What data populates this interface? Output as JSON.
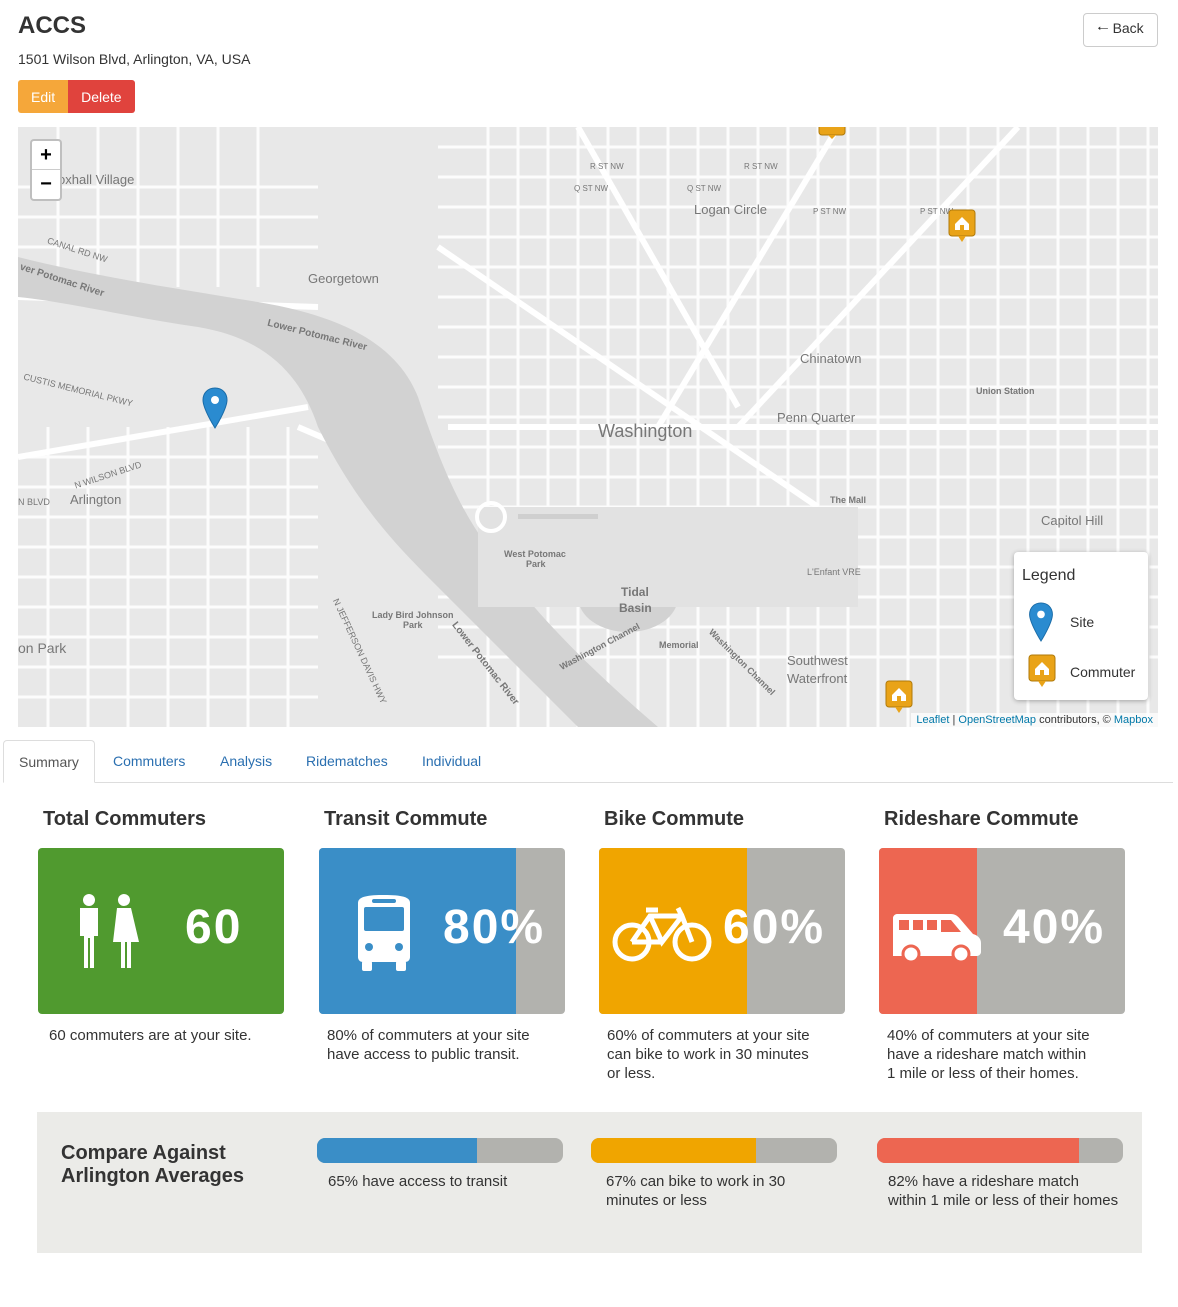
{
  "site": {
    "name": "ACCS",
    "address": "1501 Wilson Blvd, Arlington, VA, USA"
  },
  "buttons": {
    "edit": "Edit",
    "delete": "Delete",
    "back": "Back"
  },
  "map": {
    "zoom_in": "+",
    "zoom_out": "−",
    "labels": {
      "foxhall": "oxhall Village",
      "canal": "CANAL RD NW",
      "potomac_upper": "ver Potomac River",
      "georgetown": "Georgetown",
      "lower_potomac_1": "Lower Potomac River",
      "custis": "CUSTIS MEMORIAL PKWY",
      "wilson": "N WILSON BLVD",
      "arlington": "Arlington",
      "blvd": "N BLVD",
      "chinatown": "Chinatown",
      "union_station": "Union Station",
      "penn_quarter": "Penn Quarter",
      "washington": "Washington",
      "the_mall": "The Mall",
      "capitol_hill": "Capitol Hill",
      "west_potomac": "West Potomac",
      "park": "Park",
      "tidal": "Tidal",
      "basin": "Basin",
      "lenfant": "L'Enfant VRE",
      "lady_bird": "Lady Bird Johnson",
      "lady_bird_park": "Park",
      "lower_potomac_2": "Lower Potomac River",
      "memorial": "Memorial",
      "washington_channel_1": "Washington Channel",
      "washington_channel_2": "Washington Channel",
      "southwest": "Southwest",
      "waterfront": "Waterfront",
      "jefferson": "N JEFFERSON DAVIS HWY",
      "on_park": "on Park",
      "logan": "Logan Circle",
      "r_st_1": "R ST NW",
      "r_st_2": "R ST NW",
      "q_st_1": "Q ST NW",
      "q_st_2": "Q ST NW",
      "p_st_1": "P ST NW",
      "p_st_2": "P ST NW"
    },
    "legend": {
      "title": "Legend",
      "site": "Site",
      "commuter": "Commuter"
    },
    "attribution": {
      "leaflet": "Leaflet",
      "sep": " | ",
      "osm": "OpenStreetMap",
      "contrib": " contributors, © ",
      "mapbox": "Mapbox"
    }
  },
  "tabs": [
    "Summary",
    "Commuters",
    "Analysis",
    "Ridematches",
    "Individual"
  ],
  "stats": {
    "total": {
      "title": "Total Commuters",
      "value": "60",
      "description": [
        "60 commuters are at your site."
      ],
      "color": "#509a2f"
    },
    "transit": {
      "title": "Transit Commute",
      "value": "80%",
      "percent": 80,
      "description": [
        "80% of commuters at your site",
        "have access to public transit."
      ],
      "color": "#3a8ec7"
    },
    "bike": {
      "title": "Bike Commute",
      "value": "60%",
      "percent": 60,
      "description": [
        "60% of commuters at your site",
        "can bike to work in 30 minutes",
        "or less."
      ],
      "color": "#f0a500"
    },
    "rideshare": {
      "title": "Rideshare Commute",
      "value": "40%",
      "percent": 40,
      "description": [
        "40% of commuters at your site",
        "have a rideshare match within",
        "1 mile or less of their homes."
      ],
      "color": "#ed6651"
    }
  },
  "compare": {
    "title": [
      "Compare Against",
      "Arlington Averages"
    ],
    "transit": {
      "percent": 65,
      "text": [
        "65% have access to transit"
      ]
    },
    "bike": {
      "percent": 67,
      "text": [
        "67%  can bike to work in 30",
        "minutes or less"
      ]
    },
    "rideshare": {
      "percent": 82,
      "text": [
        "82%  have a rideshare match",
        "within 1 mile or less of their homes"
      ]
    },
    "neutral_color": "#b2b2ae"
  }
}
